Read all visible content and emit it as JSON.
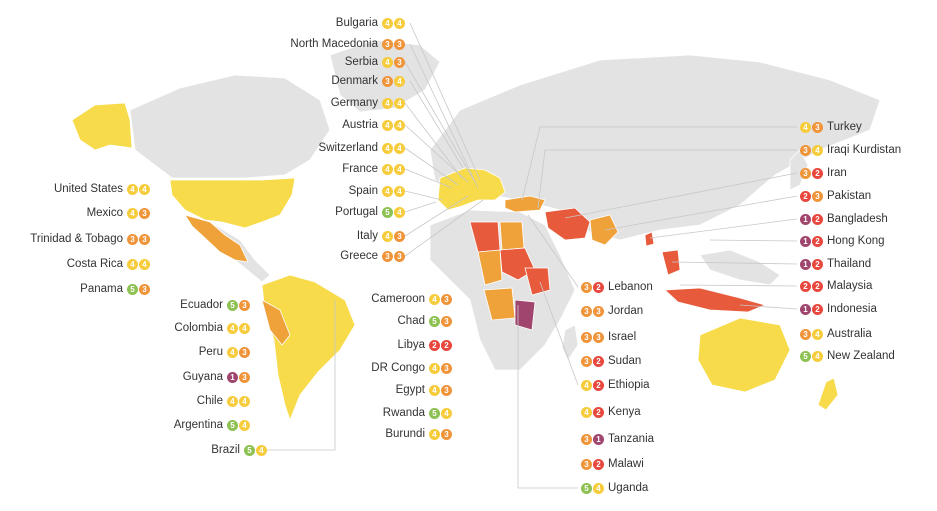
{
  "rating_colors": {
    "1": "#a0466e",
    "2": "#e8473d",
    "3": "#f0943a",
    "4": "#f7cc3c",
    "5": "#8dc152"
  },
  "map_colors": {
    "land": "#e3e3e3",
    "border": "#ffffff",
    "leader": "#c8c8c8"
  },
  "left_labels": [
    {
      "name": "Bulgaria",
      "r1": 4,
      "r2": 4
    },
    {
      "name": "North Macedonia",
      "r1": 3,
      "r2": 3
    },
    {
      "name": "Serbia",
      "r1": 4,
      "r2": 3
    },
    {
      "name": "Denmark",
      "r1": 3,
      "r2": 4
    },
    {
      "name": "Germany",
      "r1": 4,
      "r2": 4
    },
    {
      "name": "Austria",
      "r1": 4,
      "r2": 4
    },
    {
      "name": "Switzerland",
      "r1": 4,
      "r2": 4
    },
    {
      "name": "France",
      "r1": 4,
      "r2": 4
    },
    {
      "name": "Spain",
      "r1": 4,
      "r2": 4
    },
    {
      "name": "Portugal",
      "r1": 5,
      "r2": 4
    },
    {
      "name": "Italy",
      "r1": 4,
      "r2": 3
    },
    {
      "name": "Greece",
      "r1": 3,
      "r2": 3
    },
    {
      "name": "United States",
      "r1": 4,
      "r2": 4
    },
    {
      "name": "Mexico",
      "r1": 4,
      "r2": 3
    },
    {
      "name": "Trinidad & Tobago",
      "r1": 3,
      "r2": 3
    },
    {
      "name": "Costa Rica",
      "r1": 4,
      "r2": 4
    },
    {
      "name": "Panama",
      "r1": 5,
      "r2": 3
    },
    {
      "name": "Ecuador",
      "r1": 5,
      "r2": 3
    },
    {
      "name": "Colombia",
      "r1": 4,
      "r2": 4
    },
    {
      "name": "Peru",
      "r1": 4,
      "r2": 3
    },
    {
      "name": "Guyana",
      "r1": 1,
      "r2": 3
    },
    {
      "name": "Chile",
      "r1": 4,
      "r2": 4
    },
    {
      "name": "Argentina",
      "r1": 5,
      "r2": 4
    },
    {
      "name": "Brazil",
      "r1": 5,
      "r2": 4
    },
    {
      "name": "Cameroon",
      "r1": 4,
      "r2": 3
    },
    {
      "name": "Chad",
      "r1": 5,
      "r2": 3
    },
    {
      "name": "Libya",
      "r1": 2,
      "r2": 2
    },
    {
      "name": "DR Congo",
      "r1": 4,
      "r2": 3
    },
    {
      "name": "Egypt",
      "r1": 4,
      "r2": 3
    },
    {
      "name": "Rwanda",
      "r1": 5,
      "r2": 4
    },
    {
      "name": "Burundi",
      "r1": 4,
      "r2": 3
    }
  ],
  "right_labels": [
    {
      "name": "Turkey",
      "r1": 4,
      "r2": 3
    },
    {
      "name": "Iraqi Kurdistan",
      "r1": 3,
      "r2": 4
    },
    {
      "name": "Iran",
      "r1": 3,
      "r2": 2
    },
    {
      "name": "Pakistan",
      "r1": 2,
      "r2": 3
    },
    {
      "name": "Bangladesh",
      "r1": 1,
      "r2": 2
    },
    {
      "name": "Hong Kong",
      "r1": 1,
      "r2": 2
    },
    {
      "name": "Thailand",
      "r1": 1,
      "r2": 2
    },
    {
      "name": "Malaysia",
      "r1": 2,
      "r2": 2
    },
    {
      "name": "Indonesia",
      "r1": 1,
      "r2": 2
    },
    {
      "name": "Australia",
      "r1": 3,
      "r2": 4
    },
    {
      "name": "New Zealand",
      "r1": 5,
      "r2": 4
    },
    {
      "name": "Lebanon",
      "r1": 3,
      "r2": 2
    },
    {
      "name": "Jordan",
      "r1": 3,
      "r2": 3
    },
    {
      "name": "Israel",
      "r1": 3,
      "r2": 3
    },
    {
      "name": "Sudan",
      "r1": 3,
      "r2": 2
    },
    {
      "name": "Ethiopia",
      "r1": 4,
      "r2": 2
    },
    {
      "name": "Kenya",
      "r1": 4,
      "r2": 2
    },
    {
      "name": "Tanzania",
      "r1": 3,
      "r2": 1
    },
    {
      "name": "Malawi",
      "r1": 3,
      "r2": 2
    },
    {
      "name": "Uganda",
      "r1": 5,
      "r2": 4
    }
  ]
}
